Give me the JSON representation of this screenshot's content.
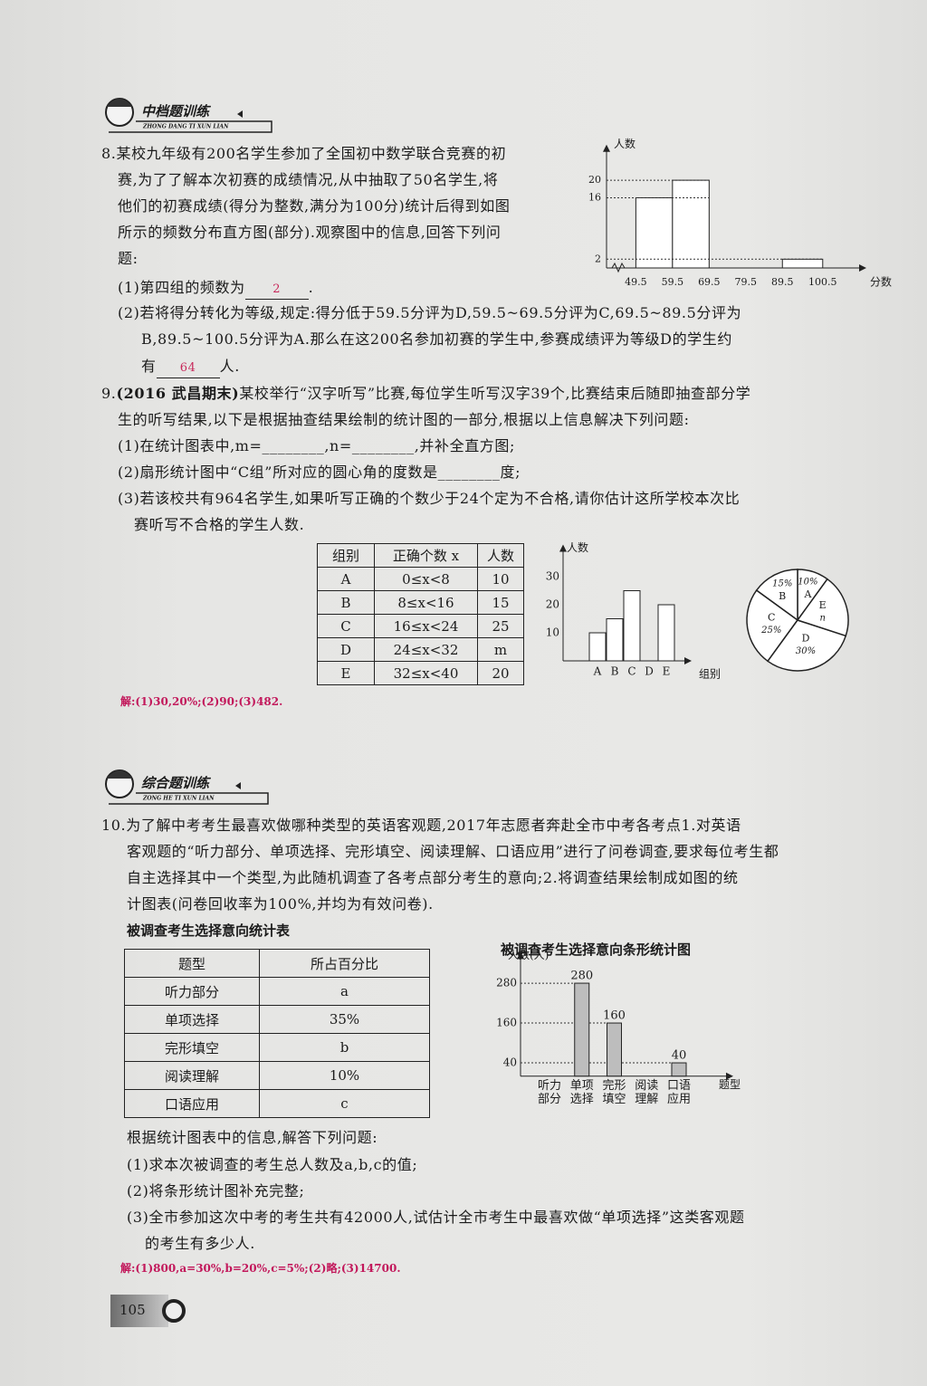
{
  "header_top": {
    "title": "中档题训练",
    "pinyin": "ZHONG DANG TI XUN LIAN"
  },
  "q8": {
    "lines": [
      "8.某校九年级有200名学生参加了全国初中数学联合竞赛的初",
      "赛,为了了解本次初赛的成绩情况,从中抽取了50名学生,将",
      "他们的初赛成绩(得分为整数,满分为100分)统计后得到如图",
      "所示的频数分布直方图(部分).观察图中的信息,回答下列问",
      "题:"
    ],
    "part1": {
      "text": "(1)第四组的频数为",
      "answer": "2",
      "end": "."
    },
    "part2": {
      "lines": [
        "(2)若将得分转化为等级,规定:得分低于59.5分评为D,59.5~69.5分评为C,69.5~89.5分评为",
        "B,89.5~100.5分评为A.那么在这200名参加初赛的学生中,参赛成绩评为等级D的学生约"
      ],
      "text": "有",
      "answer": "64",
      "end": "人."
    },
    "chart": {
      "type": "histogram",
      "y_label": "人数",
      "x_label": "分数",
      "bins": [
        49.5,
        59.5,
        69.5,
        79.5,
        89.5,
        100.5
      ],
      "counts": [
        16,
        20,
        null,
        null,
        2
      ],
      "xlim": [
        41.5,
        105
      ],
      "ylim": [
        0,
        24
      ],
      "xticks": [
        49.5,
        59.5,
        69.5,
        79.5,
        89.5,
        100.5
      ],
      "yticks": [
        2,
        16,
        20
      ],
      "grid": true,
      "color": "#ffffff"
    }
  },
  "q9": {
    "number": "9.",
    "source": "(2016 武昌期末)",
    "lines": [
      "某校举行“汉字听写”比赛,每位学生听写汉字39个,比赛结束后随即抽查部分学",
      "生的听写结果,以下是根据抽查结果绘制的统计图的一部分,根据以上信息解决下列问题:",
      "(1)在统计图表中,m=________,n=________,并补全直方图;",
      "(2)扇形统计图中“C组”所对应的圆心角的度数是________度;",
      "(3)若该校共有964名学生,如果听写正确的个数少于24个定为不合格,请你估计这所学校本次比",
      "赛听写不合格的学生人数."
    ],
    "table": {
      "headers": [
        "组别",
        "正确个数 x",
        "人数"
      ],
      "rows": [
        [
          "A",
          "0≤x<8",
          "10"
        ],
        [
          "B",
          "8≤x<16",
          "15"
        ],
        [
          "C",
          "16≤x<24",
          "25"
        ],
        [
          "D",
          "24≤x<32",
          "m"
        ],
        [
          "E",
          "32≤x<40",
          "20"
        ]
      ]
    },
    "bar": {
      "type": "bar",
      "y_label": "人数",
      "x_label": "组别",
      "categories": [
        "A",
        "B",
        "C",
        "D",
        "E"
      ],
      "values": [
        10,
        15,
        25,
        null,
        20
      ],
      "ylim": [
        0,
        35
      ],
      "yticks": [
        10,
        20,
        30
      ],
      "grid": false,
      "color": "#ffffff"
    },
    "pie": {
      "type": "pie",
      "categories": [
        "A",
        "B",
        "C",
        "D",
        "E"
      ],
      "values": [
        10,
        15,
        25,
        30,
        20
      ],
      "value_labels": [
        "10%",
        "15%",
        "25%",
        "30%",
        "n"
      ],
      "color": "#ffffff"
    },
    "answer": "解:(1)30,20%;(2)90;(3)482."
  },
  "header_mid": {
    "title": "综合题训练",
    "pinyin": "ZONG HE TI XUN LIAN"
  },
  "q10": {
    "lines": [
      "10.为了解中考考生最喜欢做哪种类型的英语客观题,2017年志愿者奔赴全市中考各考点1.对英语",
      "客观题的“听力部分、单项选择、完形填空、阅读理解、口语应用”进行了问卷调查,要求每位考生都",
      "自主选择其中一个类型,为此随机调查了各考点部分考生的意向;2.将调查结果绘制成如图的统",
      "计图表(问卷回收率为100%,并均为有效问卷)."
    ],
    "table": {
      "title": "被调查考生选择意向统计表",
      "headers": [
        "题型",
        "所占百分比"
      ],
      "rows": [
        [
          "听力部分",
          "a"
        ],
        [
          "单项选择",
          "35%"
        ],
        [
          "完形填空",
          "b"
        ],
        [
          "阅读理解",
          "10%"
        ],
        [
          "口语应用",
          "c"
        ]
      ]
    },
    "chart": {
      "type": "bar",
      "title": "被调查考生选择意向条形统计图",
      "y_label": "人数(人)",
      "x_label": "题型",
      "categories": [
        "听力部分",
        "单项选择",
        "完形填空",
        "阅读理解",
        "口语应用"
      ],
      "values": [
        null,
        280,
        160,
        null,
        40
      ],
      "ylim": [
        0,
        320
      ],
      "yticks": [
        40,
        160,
        280
      ],
      "grid": true,
      "data_labels": true,
      "color": "#bdbdbd"
    },
    "questions": [
      "根据统计图表中的信息,解答下列问题:",
      "(1)求本次被调查的考生总人数及a,b,c的值;",
      "(2)将条形统计图补充完整;",
      "(3)全市参加这次中考的考生共有42000人,试估计全市考生中最喜欢做“单项选择”这类客观题",
      "的考生有多少人."
    ],
    "answer": "解:(1)800,a=30%,b=20%,c=5%;(2)略;(3)14700."
  },
  "page_number": "105"
}
